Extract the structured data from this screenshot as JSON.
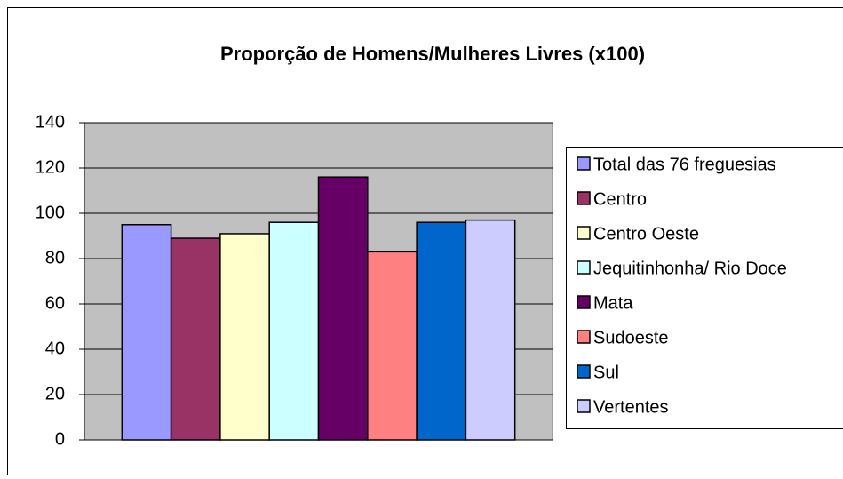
{
  "chart_data": {
    "type": "bar",
    "title": "Proporção de Homens/Mulheres Livres (x100)",
    "categories": [
      null
    ],
    "series": [
      {
        "name": "Total das 76 freguesias",
        "color": "#9999ff",
        "values": [
          95
        ]
      },
      {
        "name": "Centro",
        "color": "#993366",
        "values": [
          89
        ]
      },
      {
        "name": "Centro Oeste",
        "color": "#ffffcc",
        "values": [
          91
        ]
      },
      {
        "name": "Jequitinhonha/ Rio Doce",
        "color": "#ccffff",
        "values": [
          96
        ]
      },
      {
        "name": "Mata",
        "color": "#660066",
        "values": [
          116
        ]
      },
      {
        "name": "Sudoeste",
        "color": "#ff8080",
        "values": [
          83
        ]
      },
      {
        "name": "Sul",
        "color": "#0066cc",
        "values": [
          96
        ]
      },
      {
        "name": "Vertentes",
        "color": "#ccccff",
        "values": [
          97
        ]
      }
    ],
    "ylim": [
      0,
      140
    ],
    "yticks": [
      0,
      20,
      40,
      60,
      80,
      100,
      120,
      140
    ],
    "grid": true,
    "legend": "right"
  }
}
